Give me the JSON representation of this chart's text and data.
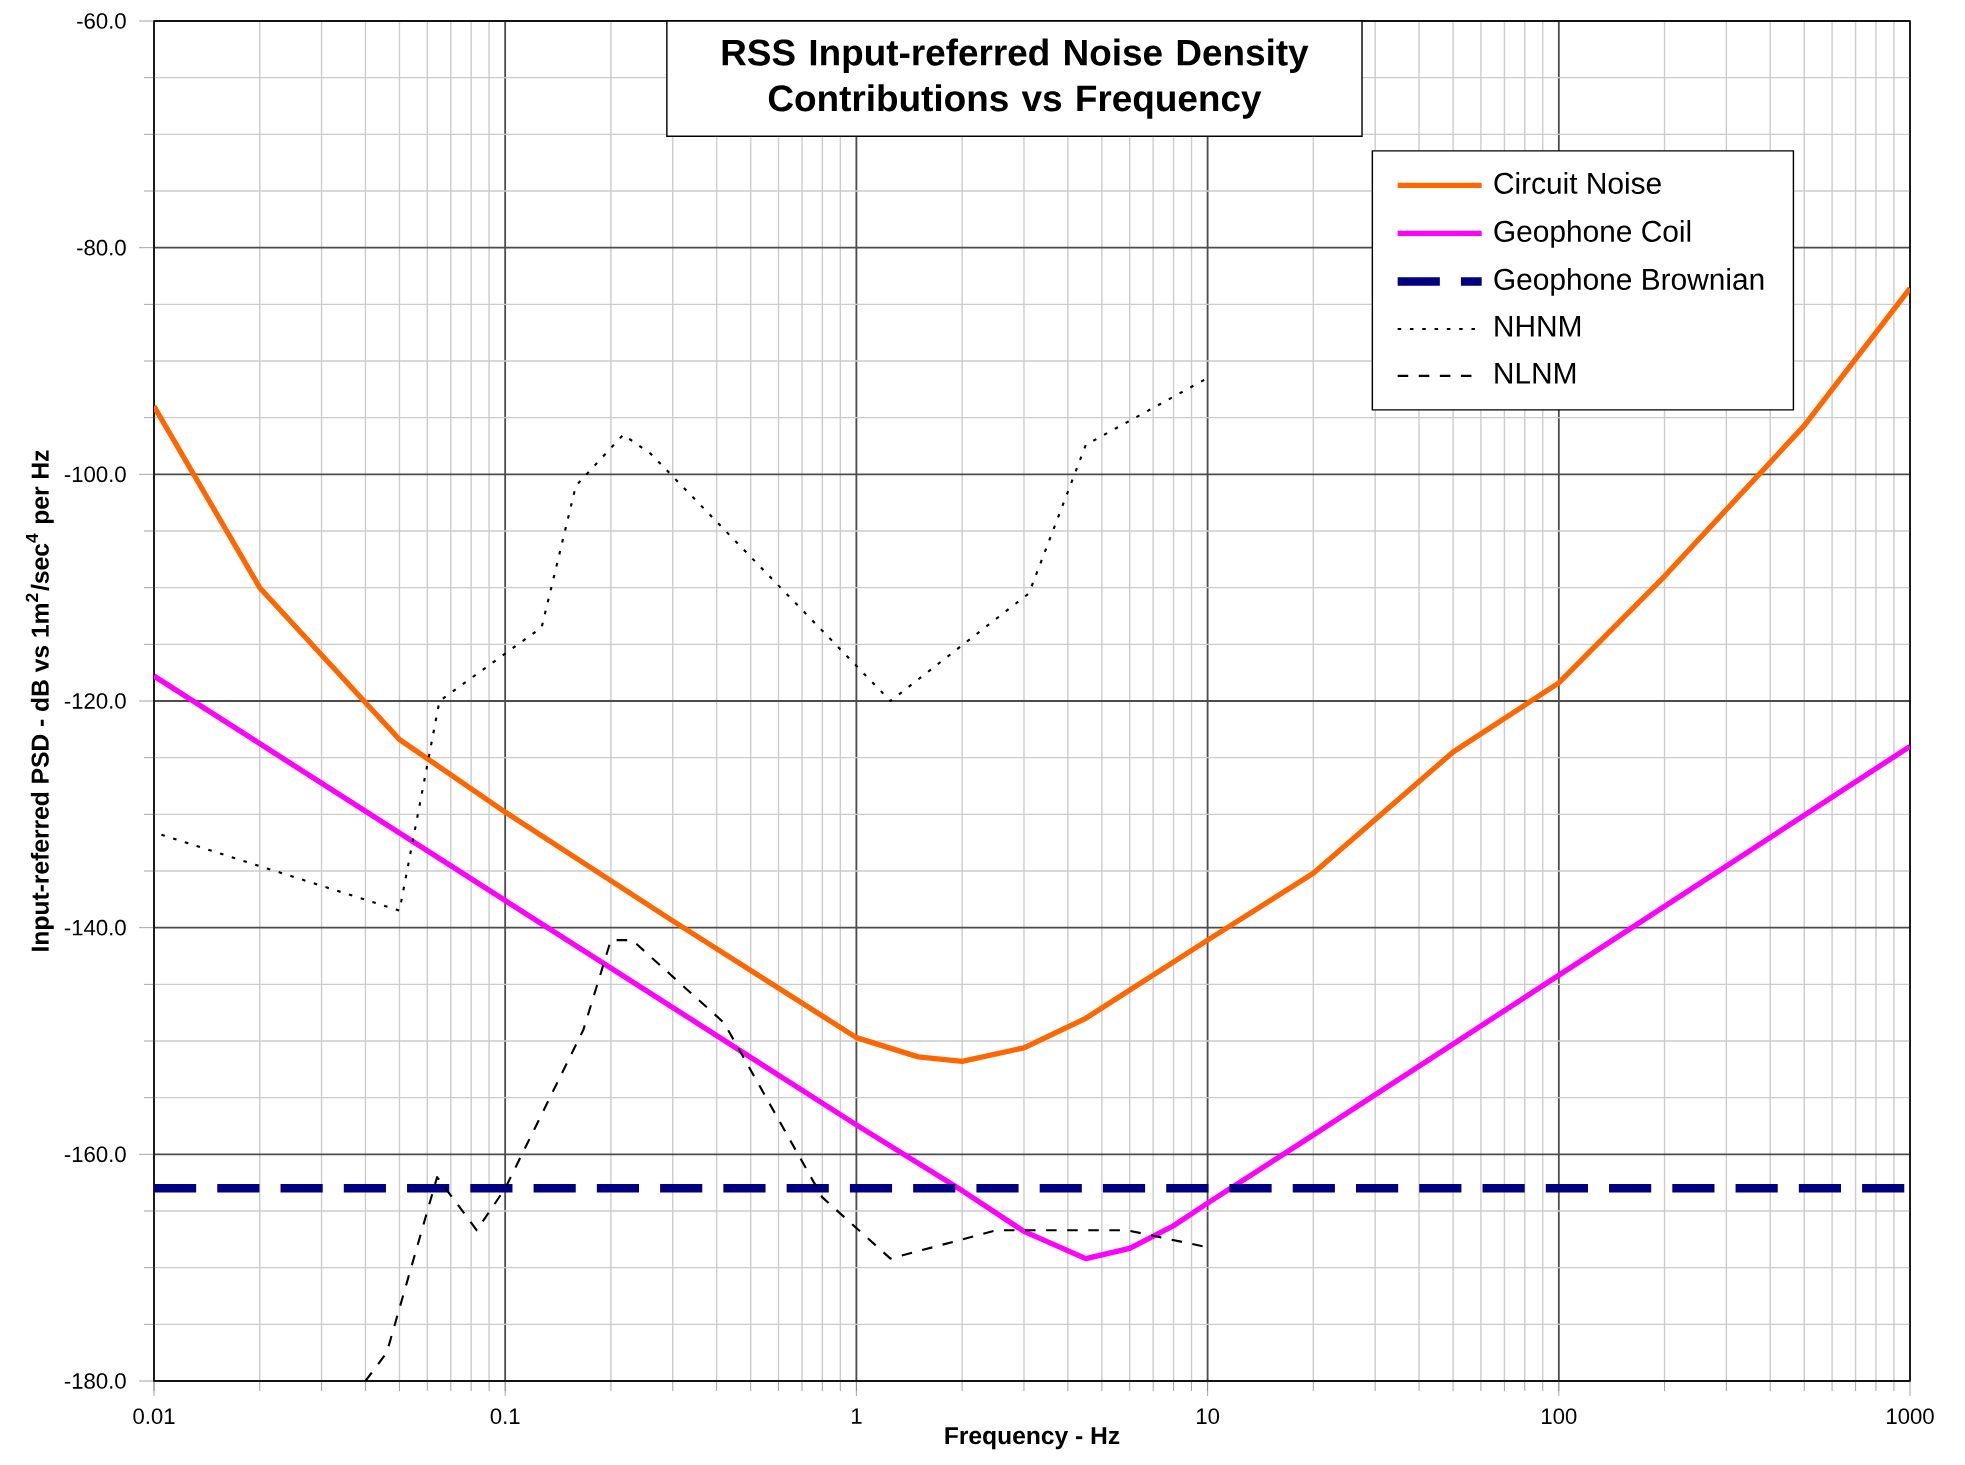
{
  "chart_data": {
    "type": "line",
    "title": "RSS Input-referred Noise Density Contributions vs Frequency",
    "xlabel": "Frequency - Hz",
    "ylabel": "Input-referred PSD - dB vs 1m$^{2}$/sec$^{4}$ per Hz",
    "log": "x",
    "grid": true,
    "legend": "top right",
    "xlim": [
      0.01,
      1000
    ],
    "xticks": [
      0.01,
      0.1,
      1,
      10,
      100,
      1000
    ],
    "ylim": [
      -180,
      -60
    ],
    "yticks": [
      {
        "value": -180,
        "label": "-180.0"
      },
      {
        "value": -160,
        "label": "-160.0"
      },
      {
        "value": -140,
        "label": "-140.0"
      },
      {
        "value": -120,
        "label": "-120.0"
      },
      {
        "value": -100,
        "label": "-100.0"
      },
      {
        "value": -80,
        "label": "-80.0"
      },
      {
        "value": -60,
        "label": "-60.0"
      }
    ],
    "series": [
      {
        "name": "Circuit Noise",
        "color": "#ff6600",
        "line_style": "solid",
        "x": [
          0.01,
          0.02,
          0.05,
          0.1,
          0.3,
          1,
          1.5,
          2,
          3,
          4.5,
          10,
          20,
          50,
          100,
          200,
          500,
          1000
        ],
        "values": [
          -94,
          -110,
          -123.4,
          -129.8,
          -139.4,
          -149.7,
          -151.4,
          -151.8,
          -150.6,
          -148,
          -141.1,
          -135.2,
          -124.5,
          -118.4,
          -109,
          -95.7,
          -83.6
        ]
      },
      {
        "name": "Geophone Coil",
        "color": "#ff00ff",
        "line_style": "solid",
        "x": [
          0.01,
          0.1,
          1,
          2,
          3,
          4.5,
          6,
          8,
          10,
          20,
          100,
          1000
        ],
        "values": [
          -117.8,
          -137.6,
          -157.4,
          -163.2,
          -166.8,
          -169.2,
          -168.3,
          -166.3,
          -164.3,
          -158.3,
          -144.2,
          -124
        ]
      },
      {
        "name": "Geophone Brownian",
        "color": "#000080",
        "line_style": "dashed",
        "x": [
          0.01,
          1000
        ],
        "values": [
          -163,
          -163
        ]
      },
      {
        "name": "NHNM",
        "color": "#000000",
        "line_style": "dotted",
        "x": [
          0.0105,
          0.05,
          0.065,
          0.127,
          0.159,
          0.217,
          0.26,
          1.25,
          3.1,
          4.5,
          10
        ],
        "values": [
          -131.8,
          -138.5,
          -120,
          -113.5,
          -101,
          -96.5,
          -98.2,
          -120,
          -110.5,
          -97.4,
          -91.5
        ]
      },
      {
        "name": "NLNM",
        "color": "#000000",
        "line_style": "dashed",
        "x": [
          0.04,
          0.046,
          0.064,
          0.083,
          0.1,
          0.167,
          0.2,
          0.23,
          0.42,
          0.8,
          1.25,
          2.5,
          5.9,
          10
        ],
        "values": [
          -180,
          -177.5,
          -162,
          -166.7,
          -163,
          -149,
          -141.1,
          -141.1,
          -148.4,
          -163.8,
          -169.2,
          -166.7,
          -166.7,
          -168.2
        ]
      }
    ]
  }
}
